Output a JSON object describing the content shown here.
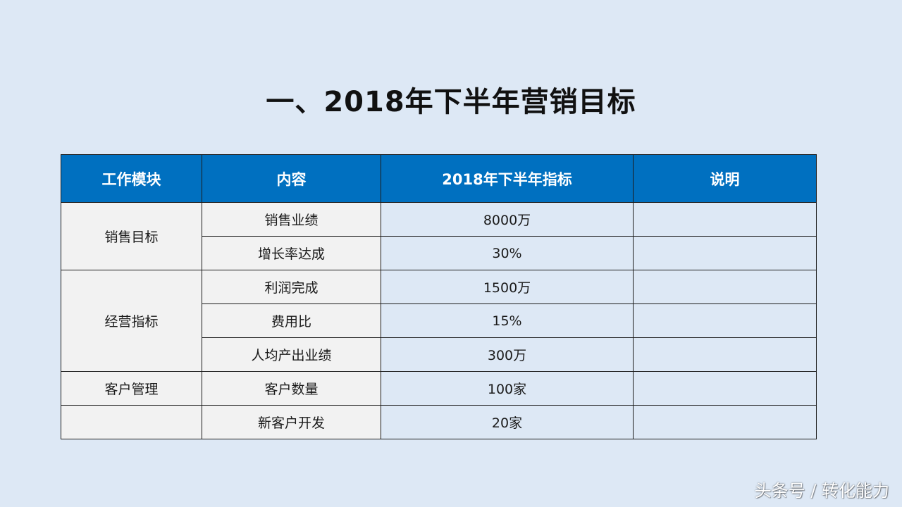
{
  "slide": {
    "title": "一、2018年下半年营销目标"
  },
  "table": {
    "headers": [
      "工作模块",
      "内容",
      "2018年下半年指标",
      "说明"
    ],
    "groups": [
      {
        "module": "销售目标",
        "rows": [
          {
            "content": "销售业绩",
            "target": "8000万",
            "note": ""
          },
          {
            "content": "增长率达成",
            "target": "30%",
            "note": ""
          }
        ]
      },
      {
        "module": "经营指标",
        "rows": [
          {
            "content": "利润完成",
            "target": "1500万",
            "note": ""
          },
          {
            "content": "费用比",
            "target": "15%",
            "note": ""
          },
          {
            "content": "人均产出业绩",
            "target": "300万",
            "note": ""
          }
        ]
      },
      {
        "module": "客户管理",
        "rows": [
          {
            "content": "客户数量",
            "target": "100家",
            "note": ""
          }
        ]
      },
      {
        "module": "",
        "rows": [
          {
            "content": "新客户开发",
            "target": "20家",
            "note": ""
          }
        ]
      }
    ]
  },
  "watermark": {
    "text": "头条号 / 转化能力"
  },
  "colors": {
    "background": "#dde8f5",
    "header": "#0070c0",
    "header_text": "#ffffff",
    "cell_gray": "#f2f2f2",
    "cell_blue": "#dde8f5"
  }
}
